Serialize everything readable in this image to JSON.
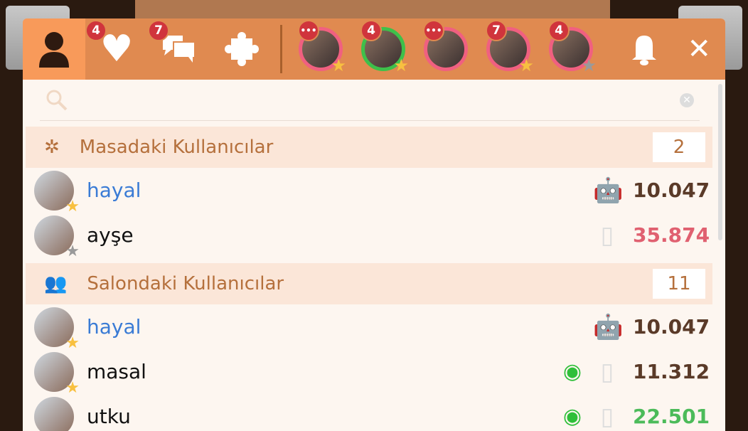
{
  "header": {
    "tabs": [
      {
        "name": "profile",
        "badge": null
      },
      {
        "name": "favorites",
        "badge": "4"
      },
      {
        "name": "messages",
        "badge": "7"
      },
      {
        "name": "puzzle",
        "badge": null
      }
    ],
    "chats": [
      {
        "badge": "•••",
        "ring": "#f06080",
        "star": "gold"
      },
      {
        "badge": "4",
        "ring": "#3ec04a",
        "star": "gold"
      },
      {
        "badge": "•••",
        "ring": "#f06080",
        "star": null
      },
      {
        "badge": "7",
        "ring": "#f06080",
        "star": "gold"
      },
      {
        "badge": "4",
        "ring": "#f06080",
        "star": "grey"
      }
    ]
  },
  "search": {
    "placeholder": ""
  },
  "sections": [
    {
      "title": "Masadaki Kullanıcılar",
      "count": "2",
      "users": [
        {
          "name": "hayal",
          "color": "blue",
          "star": "gold",
          "device": "android",
          "watching": false,
          "score": "10.047",
          "score_color": "#5a3a28"
        },
        {
          "name": "ayşe",
          "color": "black",
          "star": "grey",
          "device": "phone",
          "watching": false,
          "score": "35.874",
          "score_color": "#e06070"
        }
      ]
    },
    {
      "title": "Salondaki Kullanıcılar",
      "count": "11",
      "users": [
        {
          "name": "hayal",
          "color": "blue",
          "star": "gold",
          "device": "android",
          "watching": false,
          "score": "10.047",
          "score_color": "#5a3a28"
        },
        {
          "name": "masal",
          "color": "black",
          "star": "gold",
          "device": "phone",
          "watching": true,
          "score": "11.312",
          "score_color": "#5a3a28"
        },
        {
          "name": "utku",
          "color": "black",
          "star": null,
          "device": "phone",
          "watching": true,
          "score": "22.501",
          "score_color": "#4cbb5a"
        }
      ]
    }
  ]
}
